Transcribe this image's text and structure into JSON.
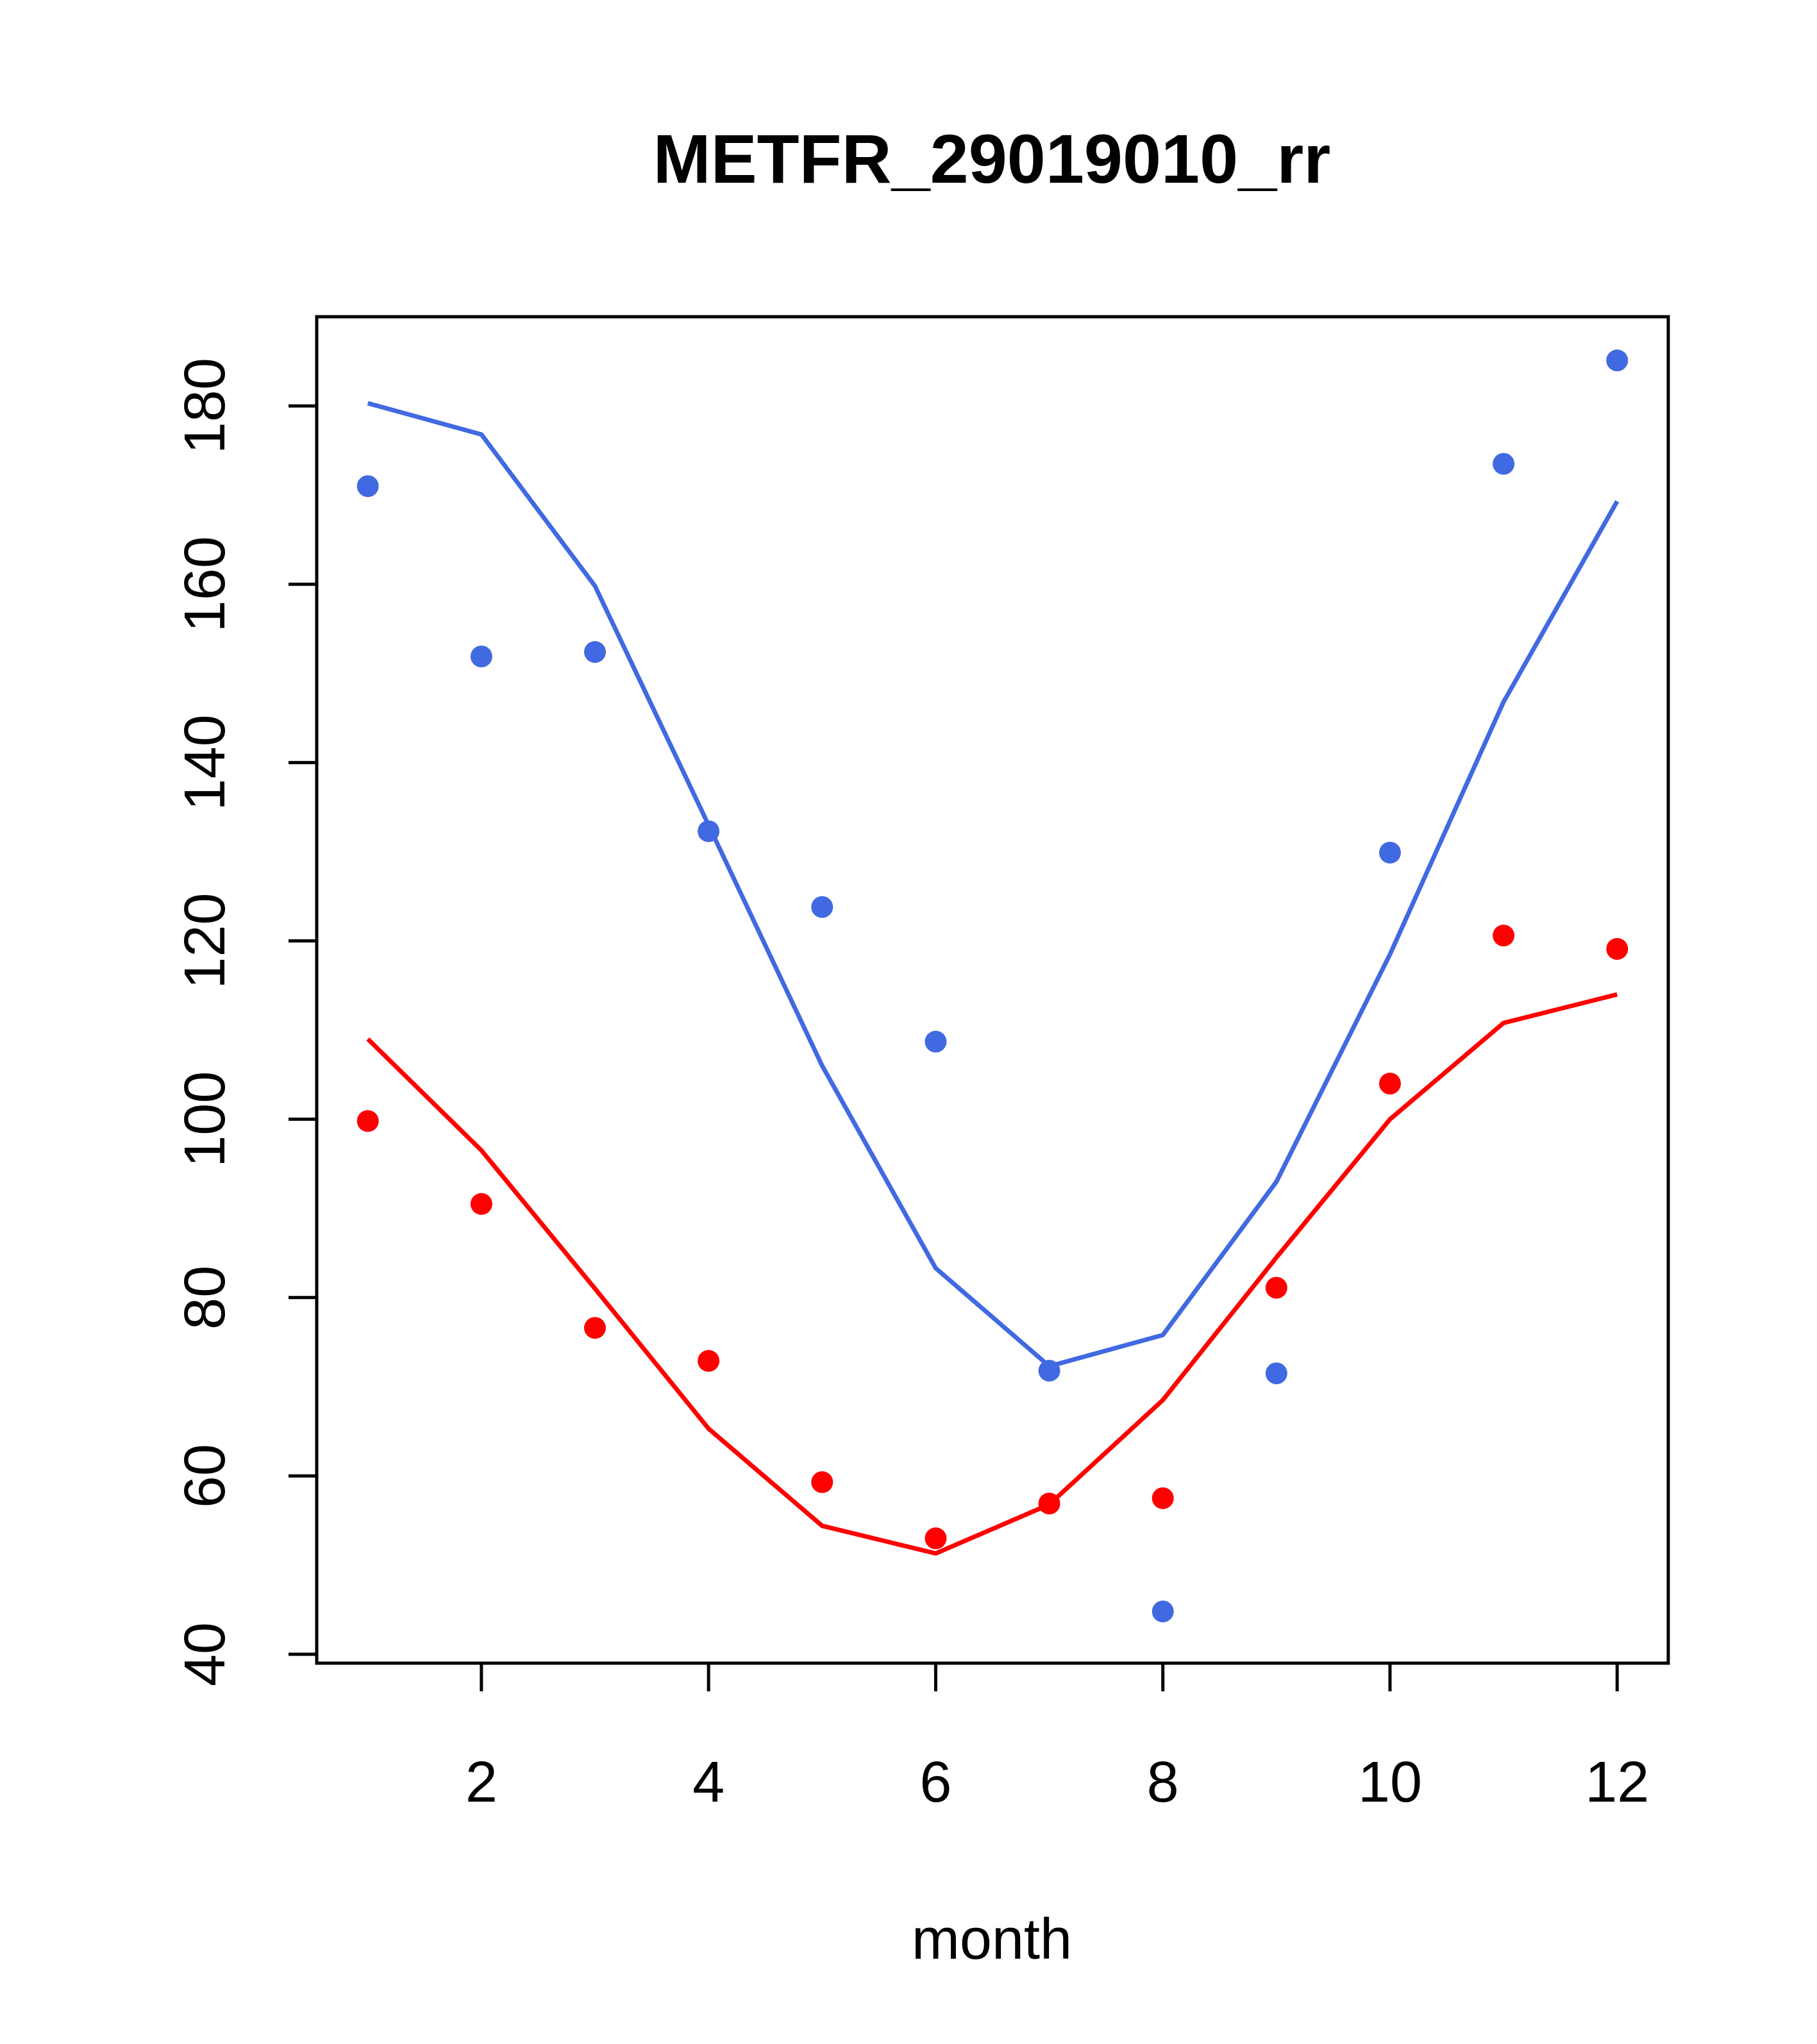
{
  "chart_data": {
    "type": "line",
    "title": "METFR_29019010_rr",
    "xlabel": "month",
    "ylabel": "",
    "xlim": [
      0.55,
      12.45
    ],
    "ylim": [
      39,
      190
    ],
    "x_ticks": [
      2,
      4,
      6,
      8,
      10,
      12
    ],
    "y_ticks": [
      40,
      60,
      80,
      100,
      120,
      140,
      160,
      180
    ],
    "grid": false,
    "legend": "none",
    "x": [
      1,
      2,
      3,
      4,
      5,
      6,
      7,
      8,
      9,
      10,
      11,
      12
    ],
    "series": [
      {
        "color": "#4169E1",
        "line": [
          180.3,
          176.8,
          159.8,
          133.0,
          106.0,
          83.3,
          72.3,
          75.8,
          93.0,
          118.5,
          146.8,
          169.3
        ],
        "points": [
          171.0,
          151.9,
          152.4,
          132.3,
          123.8,
          108.7,
          71.8,
          44.8,
          71.5,
          129.9,
          173.5,
          185.1
        ]
      },
      {
        "color": "#FF0000",
        "line": [
          109.0,
          96.5,
          81.0,
          65.3,
          54.4,
          51.3,
          56.8,
          68.5,
          84.5,
          100.0,
          110.8,
          114.0
        ],
        "points": [
          99.8,
          90.5,
          76.6,
          72.9,
          59.3,
          53.0,
          56.9,
          57.5,
          81.1,
          104.0,
          120.6,
          119.1
        ]
      }
    ]
  }
}
